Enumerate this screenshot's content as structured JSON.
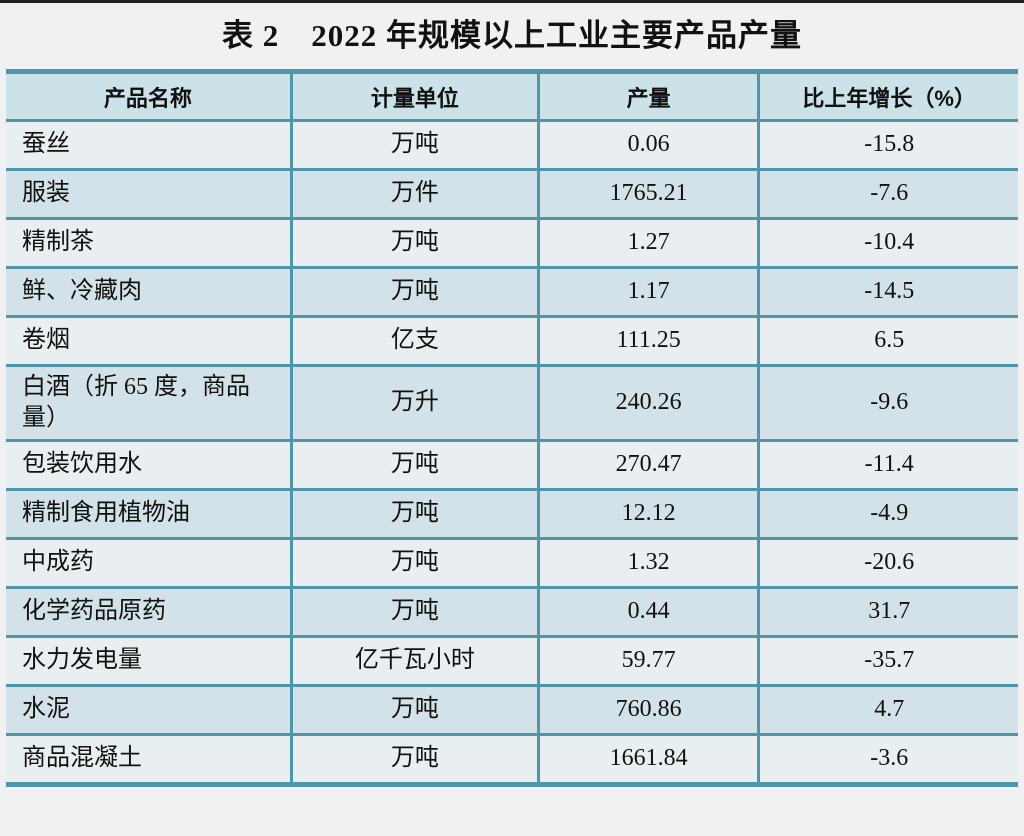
{
  "page": {
    "title": "表 2　2022 年规模以上工业主要产品产量"
  },
  "colors": {
    "border_teal": "#4d96ab",
    "header_bg": "#cbe2e9",
    "row_light": "#e9eef1",
    "row_dark": "#d3e1e8",
    "page_bg": "#eff1f2",
    "top_rule": "#202020",
    "text": "#111111"
  },
  "table": {
    "columns": [
      "产品名称",
      "计量单位",
      "产量",
      "比上年增长（%）"
    ],
    "rows": [
      [
        "蚕丝",
        "万吨",
        "0.06",
        "-15.8"
      ],
      [
        "服装",
        "万件",
        "1765.21",
        "-7.6"
      ],
      [
        "精制茶",
        "万吨",
        "1.27",
        "-10.4"
      ],
      [
        "鲜、冷藏肉",
        "万吨",
        "1.17",
        "-14.5"
      ],
      [
        "卷烟",
        "亿支",
        "111.25",
        "6.5"
      ],
      [
        "白酒（折 65 度，商品量）",
        "万升",
        "240.26",
        "-9.6"
      ],
      [
        "包装饮用水",
        "万吨",
        "270.47",
        "-11.4"
      ],
      [
        "精制食用植物油",
        "万吨",
        "12.12",
        "-4.9"
      ],
      [
        "中成药",
        "万吨",
        "1.32",
        "-20.6"
      ],
      [
        "化学药品原药",
        "万吨",
        "0.44",
        "31.7"
      ],
      [
        "水力发电量",
        "亿千瓦小时",
        "59.77",
        "-35.7"
      ],
      [
        "水泥",
        "万吨",
        "760.86",
        "4.7"
      ],
      [
        "商品混凝土",
        "万吨",
        "1661.84",
        "-3.6"
      ]
    ]
  },
  "chart_data": {
    "type": "table",
    "title": "表 2　2022 年规模以上工业主要产品产量",
    "columns": [
      "产品名称",
      "计量单位",
      "产量",
      "比上年增长（%）"
    ],
    "products": [
      "蚕丝",
      "服装",
      "精制茶",
      "鲜、冷藏肉",
      "卷烟",
      "白酒（折 65 度，商品量）",
      "包装饮用水",
      "精制食用植物油",
      "中成药",
      "化学药品原药",
      "水力发电量",
      "水泥",
      "商品混凝土"
    ],
    "units": [
      "万吨",
      "万件",
      "万吨",
      "万吨",
      "亿支",
      "万升",
      "万吨",
      "万吨",
      "万吨",
      "万吨",
      "亿千瓦小时",
      "万吨",
      "万吨"
    ],
    "output": [
      0.06,
      1765.21,
      1.27,
      1.17,
      111.25,
      240.26,
      270.47,
      12.12,
      1.32,
      0.44,
      59.77,
      760.86,
      1661.84
    ],
    "growth_pct": [
      -15.8,
      -7.6,
      -10.4,
      -14.5,
      6.5,
      -9.6,
      -11.4,
      -4.9,
      -20.6,
      31.7,
      -35.7,
      4.7,
      -3.6
    ]
  }
}
